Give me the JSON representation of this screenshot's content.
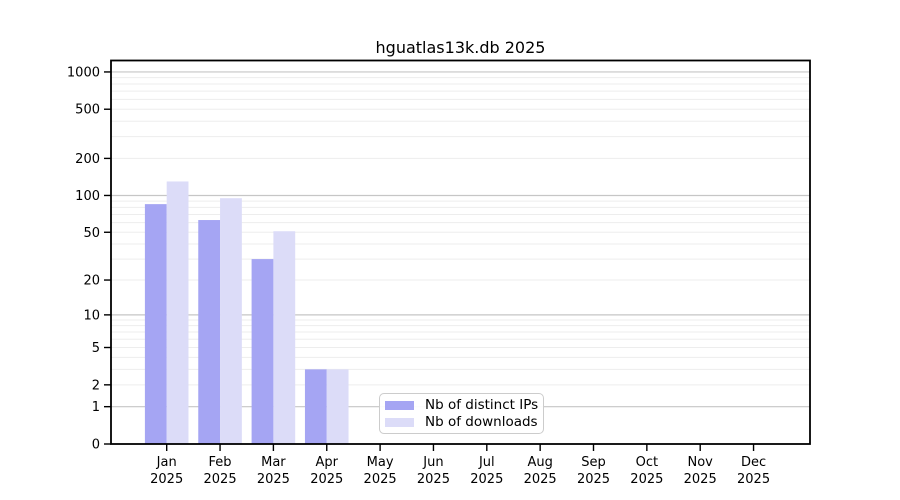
{
  "chart_data": {
    "type": "bar",
    "title": "hguatlas13k.db 2025",
    "categories": [
      "Jan",
      "Feb",
      "Mar",
      "Apr",
      "May",
      "Jun",
      "Jul",
      "Aug",
      "Sep",
      "Oct",
      "Nov",
      "Dec"
    ],
    "category_year": "2025",
    "series": [
      {
        "name": "Nb of distinct IPs",
        "color": "#a5a5f3",
        "values": [
          85,
          63,
          30,
          3,
          0,
          0,
          0,
          0,
          0,
          0,
          0,
          0
        ]
      },
      {
        "name": "Nb of downloads",
        "color": "#dcdcf8",
        "values": [
          130,
          95,
          51,
          3,
          0,
          0,
          0,
          0,
          0,
          0,
          0,
          0
        ]
      }
    ],
    "xlabel": "",
    "ylabel": "",
    "y_ticks": [
      0,
      1,
      2,
      5,
      10,
      20,
      50,
      100,
      200,
      500,
      1000
    ],
    "y_scale": "log-like (y proportional to log10(1+v))",
    "ylim": [
      0,
      1240
    ],
    "grid": "major gray lines at 1,10,100,1000; faint minor lines at 2-9, 20-90, 200-900",
    "legend_position": "inside lower-center",
    "colors": {
      "background": "#ffffff",
      "axis_spine": "#000000",
      "major_grid": "#c6c6c6",
      "minor_grid": "#ededed",
      "tick_label": "#000000",
      "legend_border": "#cccccc"
    }
  }
}
